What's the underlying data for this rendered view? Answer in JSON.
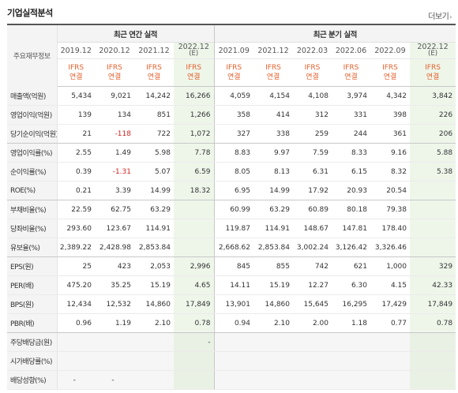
{
  "section": {
    "title": "기업실적분석",
    "more_label": "더보기",
    "more_icon": "chevron-right-icon"
  },
  "table": {
    "row_header_label": "주요재무정보",
    "groups": {
      "annual": "최근 연간 실적",
      "quarterly": "최근 분기 실적"
    },
    "columns": [
      {
        "period": "2019.12",
        "basis_1": "IFRS",
        "basis_2": "연결",
        "estimate": ""
      },
      {
        "period": "2020.12",
        "basis_1": "IFRS",
        "basis_2": "연결",
        "estimate": ""
      },
      {
        "period": "2021.12",
        "basis_1": "IFRS",
        "basis_2": "연결",
        "estimate": ""
      },
      {
        "period": "2022.12",
        "basis_1": "IFRS",
        "basis_2": "연결",
        "estimate": "(E)"
      },
      {
        "period": "2021.09",
        "basis_1": "IFRS",
        "basis_2": "연결",
        "estimate": ""
      },
      {
        "period": "2021.12",
        "basis_1": "IFRS",
        "basis_2": "연결",
        "estimate": ""
      },
      {
        "period": "2022.03",
        "basis_1": "IFRS",
        "basis_2": "연결",
        "estimate": ""
      },
      {
        "period": "2022.06",
        "basis_1": "IFRS",
        "basis_2": "연결",
        "estimate": ""
      },
      {
        "period": "2022.09",
        "basis_1": "IFRS",
        "basis_2": "연결",
        "estimate": ""
      },
      {
        "period": "2022.12",
        "basis_1": "IFRS",
        "basis_2": "연결",
        "estimate": "(E)"
      }
    ],
    "rows": [
      {
        "label": "매출액(억원)",
        "values": [
          "5,434",
          "9,021",
          "14,242",
          "16,266",
          "4,059",
          "4,154",
          "4,108",
          "3,974",
          "4,342",
          "3,842"
        ]
      },
      {
        "label": "영업이익(억원)",
        "values": [
          "139",
          "134",
          "851",
          "1,266",
          "358",
          "414",
          "312",
          "331",
          "398",
          "226"
        ]
      },
      {
        "label": "당기순이익(억원)",
        "values": [
          "21",
          "-118",
          "722",
          "1,072",
          "327",
          "338",
          "259",
          "244",
          "361",
          "206"
        ]
      },
      {
        "label": "영업이익률(%)",
        "values": [
          "2.55",
          "1.49",
          "5.98",
          "7.78",
          "8.83",
          "9.97",
          "7.59",
          "8.33",
          "9.16",
          "5.88"
        ]
      },
      {
        "label": "순이익률(%)",
        "values": [
          "0.39",
          "-1.31",
          "5.07",
          "6.59",
          "8.05",
          "8.13",
          "6.31",
          "6.15",
          "8.32",
          "5.38"
        ]
      },
      {
        "label": "ROE(%)",
        "values": [
          "0.21",
          "3.39",
          "14.99",
          "18.32",
          "6.95",
          "14.99",
          "17.92",
          "20.93",
          "20.54",
          ""
        ]
      },
      {
        "label": "부채비율(%)",
        "values": [
          "22.59",
          "62.75",
          "63.29",
          "",
          "60.99",
          "63.29",
          "60.89",
          "80.18",
          "79.38",
          ""
        ]
      },
      {
        "label": "당좌비율(%)",
        "values": [
          "293.60",
          "123.67",
          "114.91",
          "",
          "119.87",
          "114.91",
          "148.67",
          "147.81",
          "178.40",
          ""
        ]
      },
      {
        "label": "유보율(%)",
        "values": [
          "2,389.22",
          "2,428.98",
          "2,853.84",
          "",
          "2,668.62",
          "2,853.84",
          "3,002.24",
          "3,126.42",
          "3,326.46",
          ""
        ]
      },
      {
        "label": "EPS(원)",
        "values": [
          "25",
          "423",
          "2,053",
          "2,996",
          "845",
          "855",
          "742",
          "621",
          "1,000",
          "329"
        ]
      },
      {
        "label": "PER(배)",
        "values": [
          "475.20",
          "35.25",
          "15.19",
          "4.65",
          "14.11",
          "15.19",
          "12.27",
          "6.30",
          "4.15",
          "42.33"
        ]
      },
      {
        "label": "BPS(원)",
        "values": [
          "12,434",
          "12,532",
          "14,860",
          "17,849",
          "13,901",
          "14,860",
          "15,645",
          "16,295",
          "17,429",
          "17,849"
        ]
      },
      {
        "label": "PBR(배)",
        "values": [
          "0.96",
          "1.19",
          "2.10",
          "0.78",
          "0.94",
          "2.10",
          "2.00",
          "1.18",
          "0.77",
          "0.78"
        ]
      },
      {
        "label": "주당배당금(원)",
        "values": [
          "",
          "",
          "",
          "-",
          "",
          "",
          "",
          "",
          "",
          ""
        ]
      },
      {
        "label": "시가배당률(%)",
        "values": [
          "",
          "",
          "",
          "",
          "",
          "",
          "",
          "",
          "",
          ""
        ]
      },
      {
        "label": "배당성향(%)",
        "values": [
          "-",
          "-",
          "",
          "",
          "",
          "",
          "",
          "",
          "",
          ""
        ]
      }
    ]
  },
  "colors": {
    "basis_text": "#e5612e",
    "negative_value": "#d51f1f",
    "estimate_column_bg": "#eef6ea",
    "label_column_bg": "#f4f4f4"
  }
}
